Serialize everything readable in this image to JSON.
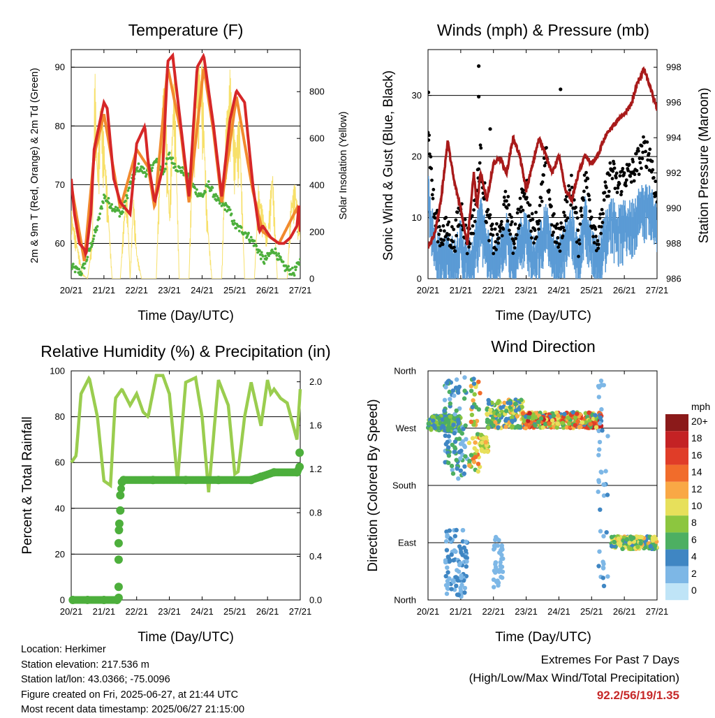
{
  "colors": {
    "temp2m": "#d62728",
    "temp9m": "#f28a2e",
    "dew": "#4daf3c",
    "solar": "#f7e06a",
    "wind": "#5b9bd5",
    "gust": "#000000",
    "pressure": "#a81a1a",
    "rh": "#9acd4f",
    "precip": "#4daf3c",
    "extreme": "#c62828"
  },
  "info": {
    "location": "Location: Herkimer",
    "elevation": "Station elevation: 217.536 m",
    "latlon": "Station lat/lon: 43.0366; -75.0096",
    "created": "Figure created on Fri, 2025-06-27, at 21:44 UTC",
    "recent": "Most recent data timestamp: 2025/06/27 21:15:00"
  },
  "extremes": {
    "title": "Extremes For Past 7 Days",
    "subtitle": "(High/Low/Max Wind/Total Precipitation)",
    "values": "92.2/56/19/1.35"
  },
  "chart_data": [
    {
      "type": "line",
      "title": "Temperature (F)",
      "xlabel": "Time (Day/UTC)",
      "ylabel": "2m & 9m T (Red, Orange) & 2m Td (Green)",
      "y2label": "Solar Insolation (Yellow)",
      "x_ticks": [
        "20/21",
        "21/21",
        "22/21",
        "23/21",
        "24/21",
        "25/21",
        "26/21",
        "27/21"
      ],
      "ylim": [
        54,
        93
      ],
      "y_ticks": [
        60,
        70,
        80,
        90
      ],
      "y2lim": [
        0,
        980
      ],
      "y2_ticks": [
        0,
        200,
        400,
        600,
        800
      ],
      "grid": true,
      "series": [
        {
          "name": "2m T",
          "x": [
            0,
            0.1,
            0.25,
            0.4,
            0.45,
            0.6,
            0.7,
            1.0,
            1.1,
            1.3,
            1.5,
            1.8,
            2.0,
            2.25,
            2.35,
            2.55,
            2.8,
            2.95,
            3.1,
            3.35,
            3.6,
            3.85,
            4.05,
            4.35,
            4.6,
            4.85,
            5.05,
            5.3,
            5.55,
            5.75,
            5.85,
            6.1,
            6.35,
            6.5,
            6.7,
            6.9,
            6.97,
            7.0
          ],
          "values": [
            71,
            65,
            60,
            59,
            58,
            65,
            76,
            84,
            83,
            71,
            67,
            65,
            77,
            80,
            74,
            67,
            73,
            91,
            92,
            80,
            68,
            90,
            92,
            80,
            68,
            81,
            86,
            84,
            70,
            62,
            63,
            61,
            60,
            60,
            61,
            63,
            67,
            62
          ]
        },
        {
          "name": "9m T",
          "x": [
            0,
            0.4,
            0.7,
            1.0,
            1.5,
            2.0,
            2.35,
            2.55,
            2.95,
            3.35,
            3.6,
            4.05,
            4.35,
            4.6,
            5.05,
            5.55,
            5.85,
            6.35,
            6.9,
            7.0
          ],
          "values": [
            70,
            57,
            75,
            82,
            66,
            76,
            73,
            66,
            90,
            79,
            67,
            90,
            79,
            67,
            85,
            69,
            62,
            60,
            66,
            63
          ]
        },
        {
          "name": "2m Td",
          "x": [
            0,
            0.3,
            0.45,
            0.8,
            1.0,
            1.3,
            1.55,
            1.8,
            2.05,
            2.3,
            2.6,
            2.8,
            3.0,
            3.2,
            3.5,
            3.8,
            4.0,
            4.2,
            4.5,
            4.8,
            5.0,
            5.3,
            5.6,
            5.9,
            6.2,
            6.5,
            6.8,
            7.0
          ],
          "values": [
            56,
            55,
            57,
            63,
            68,
            66,
            65,
            70,
            73,
            72,
            74,
            72,
            75,
            73,
            72,
            69,
            68,
            70,
            67,
            66,
            63,
            62,
            60,
            57,
            59,
            56,
            55,
            57
          ]
        },
        {
          "name": "Solar Insolation",
          "axis": "y2",
          "x": [
            0,
            0.35,
            0.5,
            0.65,
            0.72,
            0.8,
            0.9,
            1.0,
            1.1,
            1.25,
            1.5,
            1.6,
            1.7,
            1.8,
            1.9,
            2.0,
            2.15,
            2.3,
            2.6,
            2.72,
            2.85,
            3.0,
            3.15,
            3.3,
            3.6,
            3.72,
            3.85,
            4.0,
            4.15,
            4.3,
            4.6,
            4.72,
            4.85,
            5.0,
            5.15,
            5.3,
            5.6,
            5.72,
            5.85,
            6.0,
            6.15,
            6.3,
            6.6,
            6.72,
            6.85,
            7.0
          ],
          "values": [
            300,
            20,
            0,
            200,
            930,
            500,
            800,
            620,
            400,
            0,
            0,
            250,
            420,
            0,
            380,
            120,
            0,
            0,
            0,
            600,
            900,
            300,
            950,
            0,
            0,
            700,
            900,
            950,
            300,
            0,
            0,
            650,
            900,
            600,
            700,
            0,
            0,
            400,
            300,
            200,
            500,
            0,
            0,
            350,
            420,
            200
          ]
        }
      ]
    },
    {
      "type": "line",
      "title": "Winds (mph) & Pressure (mb)",
      "xlabel": "Time (Day/UTC)",
      "ylabel": "Sonic Wind & Gust (Blue, Black)",
      "y2label": "Station Pressure (Maroon)",
      "x_ticks": [
        "20/21",
        "21/21",
        "22/21",
        "23/21",
        "24/21",
        "25/21",
        "26/21",
        "27/21"
      ],
      "ylim": [
        0,
        37.5
      ],
      "y_ticks": [
        0,
        10,
        20,
        30
      ],
      "y2lim": [
        986,
        999
      ],
      "y2_ticks": [
        986,
        988,
        990,
        992,
        994,
        996,
        998
      ],
      "grid": true,
      "series": [
        {
          "name": "Sonic Wind",
          "x": [
            0,
            0.2,
            0.4,
            0.6,
            0.8,
            1.0,
            1.2,
            1.4,
            1.6,
            1.8,
            2.0,
            2.2,
            2.4,
            2.6,
            2.8,
            3.0,
            3.2,
            3.4,
            3.6,
            3.8,
            4.0,
            4.2,
            4.4,
            4.6,
            4.8,
            5.0,
            5.2,
            5.4,
            5.6,
            5.8,
            6.0,
            6.2,
            6.4,
            6.6,
            6.8,
            7.0
          ],
          "values": [
            14,
            5,
            3,
            4,
            3,
            6,
            2,
            4,
            10,
            5,
            3,
            4,
            7,
            3,
            6,
            8,
            3,
            5,
            9,
            4,
            3,
            6,
            8,
            3,
            10,
            5,
            3,
            7,
            10,
            8,
            9,
            9,
            11,
            12,
            12,
            8
          ]
        },
        {
          "name": "Gust",
          "x": [
            0,
            0.2,
            0.4,
            0.6,
            0.8,
            1.0,
            1.2,
            1.4,
            1.6,
            1.8,
            2.0,
            2.2,
            2.4,
            2.6,
            2.8,
            3.0,
            3.2,
            3.4,
            3.6,
            3.8,
            4.0,
            4.2,
            4.4,
            4.6,
            4.8,
            5.0,
            5.2,
            5.4,
            5.6,
            5.8,
            6.0,
            6.2,
            6.4,
            6.6,
            6.8,
            7.0
          ],
          "values": [
            25,
            10,
            7,
            8,
            6,
            12,
            6,
            10,
            20,
            10,
            6,
            7,
            13,
            6,
            11,
            15,
            8,
            10,
            20,
            9,
            6,
            11,
            15,
            6,
            18,
            10,
            6,
            13,
            18,
            15,
            17,
            17,
            19,
            21,
            20,
            13
          ]
        },
        {
          "name": "Station Pressure",
          "axis": "y2",
          "x": [
            0,
            0.2,
            0.4,
            0.6,
            0.8,
            1.0,
            1.2,
            1.4,
            1.5,
            1.6,
            1.8,
            2.0,
            2.2,
            2.4,
            2.6,
            2.8,
            3.0,
            3.2,
            3.4,
            3.6,
            3.8,
            4.0,
            4.2,
            4.4,
            4.6,
            4.8,
            5.0,
            5.2,
            5.4,
            5.6,
            5.8,
            6.0,
            6.2,
            6.4,
            6.6,
            6.8,
            6.9,
            7.0
          ],
          "values": [
            987.8,
            988.5,
            990.5,
            993.8,
            991.5,
            990,
            988,
            992,
            990,
            992,
            990.5,
            992.5,
            992.8,
            992,
            994,
            993,
            991,
            992.5,
            994,
            993,
            992,
            993,
            991,
            990.5,
            992,
            993,
            992.5,
            993,
            994,
            994.5,
            995,
            995.4,
            995.8,
            997.1,
            997.9,
            996.8,
            996.2,
            995.6
          ]
        }
      ],
      "gust_outliers": [
        {
          "x": 0.01,
          "y": 30.5
        },
        {
          "x": 1.55,
          "y": 34.8
        },
        {
          "x": 1.55,
          "y": 29.8
        },
        {
          "x": 1.9,
          "y": 24.5
        },
        {
          "x": 4.05,
          "y": 31
        }
      ]
    },
    {
      "type": "line",
      "title": "Relative Humidity (%) & Precipitation (in)",
      "xlabel": "Time (Day/UTC)",
      "ylabel": "Percent & Total Rainfall",
      "x_ticks": [
        "20/21",
        "21/21",
        "22/21",
        "23/21",
        "24/21",
        "25/21",
        "26/21",
        "27/21"
      ],
      "ylim": [
        0,
        100
      ],
      "y_ticks": [
        0,
        20,
        40,
        60,
        80,
        100
      ],
      "y2lim": [
        0,
        2.1
      ],
      "y2_ticks": [
        "0.0",
        "0.4",
        "0.8",
        "1.2",
        "1.6",
        "2.0"
      ],
      "grid": true,
      "series": [
        {
          "name": "Relative Humidity",
          "x": [
            0,
            0.15,
            0.3,
            0.55,
            0.8,
            1.0,
            1.2,
            1.35,
            1.55,
            1.8,
            2.0,
            2.2,
            2.35,
            2.6,
            2.8,
            3.0,
            3.25,
            3.5,
            3.8,
            4.0,
            4.2,
            4.5,
            4.8,
            5.0,
            5.1,
            5.3,
            5.5,
            5.8,
            6.0,
            6.1,
            6.2,
            6.4,
            6.6,
            6.9,
            7.0
          ],
          "values": [
            60,
            63,
            90,
            97,
            80,
            52,
            50,
            88,
            92,
            85,
            90,
            82,
            80,
            98,
            98,
            90,
            52,
            95,
            97,
            80,
            47,
            96,
            85,
            55,
            56,
            80,
            95,
            76,
            96,
            90,
            92,
            88,
            86,
            70,
            92
          ]
        },
        {
          "name": "Total Precipitation",
          "axis": "y2",
          "points": [
            [
              0.05,
              0
            ],
            [
              0.5,
              0
            ],
            [
              1.0,
              0
            ],
            [
              1.4,
              0
            ],
            [
              1.45,
              0.02
            ],
            [
              1.45,
              0.12
            ],
            [
              1.45,
              0.37
            ],
            [
              1.45,
              0.52
            ],
            [
              1.46,
              0.64
            ],
            [
              1.47,
              0.7
            ],
            [
              1.5,
              0.82
            ],
            [
              1.5,
              0.96
            ],
            [
              1.55,
              1.08
            ],
            [
              1.6,
              1.1
            ],
            [
              2.5,
              1.1
            ],
            [
              3.5,
              1.1
            ],
            [
              4.5,
              1.1
            ],
            [
              5.5,
              1.1
            ],
            [
              5.8,
              1.13
            ],
            [
              6.2,
              1.17
            ],
            [
              6.9,
              1.17
            ],
            [
              6.98,
              1.22
            ],
            [
              6.98,
              1.35
            ]
          ]
        }
      ]
    },
    {
      "type": "scatter",
      "title": "Wind Direction",
      "xlabel": "Time (Day/UTC)",
      "ylabel": "Direction (Colored By Speed)",
      "x_ticks": [
        "20/21",
        "21/21",
        "22/21",
        "23/21",
        "24/21",
        "25/21",
        "26/21",
        "27/21"
      ],
      "y_ticks": [
        "North",
        "East",
        "South",
        "West",
        "North"
      ],
      "ylim": [
        0,
        360
      ],
      "grid": true,
      "legend_title": "mph",
      "legend_labels": [
        "20+",
        "18",
        "16",
        "14",
        "12",
        "10",
        "8",
        "6",
        "4",
        "2",
        "0"
      ],
      "legend_colors": [
        "#8b1a1a",
        "#c42224",
        "#e03d28",
        "#f16c2b",
        "#f9a845",
        "#e7e05b",
        "#8cc63f",
        "#4daf62",
        "#3f86c3",
        "#7db7e6",
        "#bfe4f7"
      ],
      "clusters": [
        {
          "x": [
            0,
            1.0
          ],
          "dir": [
            265,
            290
          ],
          "speed": [
            3,
            9
          ]
        },
        {
          "x": [
            0.5,
            1.2
          ],
          "dir": [
            190,
            350
          ],
          "speed": [
            2,
            6
          ]
        },
        {
          "x": [
            0.5,
            1.2
          ],
          "dir": [
            5,
            110
          ],
          "speed": [
            1,
            5
          ]
        },
        {
          "x": [
            1.25,
            1.6
          ],
          "dir": [
            200,
            350
          ],
          "speed": [
            4,
            14
          ]
        },
        {
          "x": [
            1.6,
            1.85
          ],
          "dir": [
            230,
            260
          ],
          "speed": [
            8,
            13
          ]
        },
        {
          "x": [
            1.8,
            2.9
          ],
          "dir": [
            270,
            315
          ],
          "speed": [
            3,
            12
          ]
        },
        {
          "x": [
            2.0,
            2.3
          ],
          "dir": [
            20,
            100
          ],
          "speed": [
            1,
            3
          ]
        },
        {
          "x": [
            2.9,
            5.3
          ],
          "dir": [
            270,
            295
          ],
          "speed": [
            4,
            18
          ]
        },
        {
          "x": [
            5.2,
            5.5
          ],
          "dir": [
            20,
            350
          ],
          "speed": [
            1,
            4
          ]
        },
        {
          "x": [
            5.6,
            7.0
          ],
          "dir": [
            80,
            100
          ],
          "speed": [
            4,
            12
          ]
        }
      ]
    }
  ]
}
